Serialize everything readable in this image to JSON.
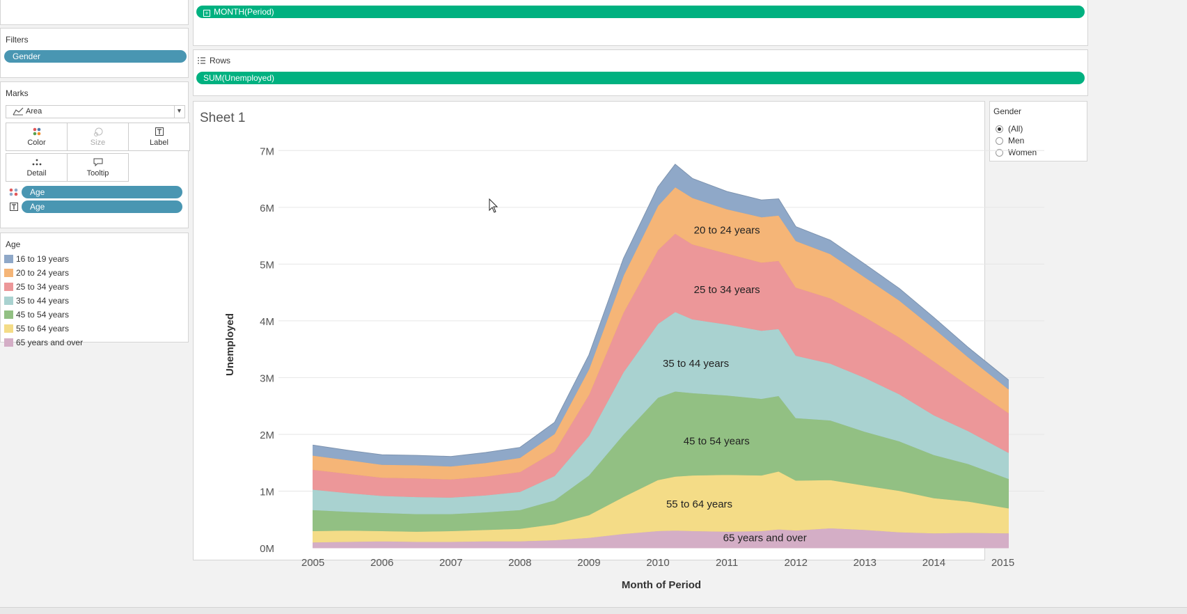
{
  "shelves": {
    "columns_pill": "MONTH(Period)",
    "rows_label": "Rows",
    "rows_pill": "SUM(Unemployed)"
  },
  "filters": {
    "title": "Filters",
    "pill": "Gender"
  },
  "marks": {
    "title": "Marks",
    "type": "Area",
    "buttons": {
      "color": "Color",
      "size": "Size",
      "label": "Label",
      "detail": "Detail",
      "tooltip": "Tooltip"
    },
    "fields": [
      {
        "encoding": "color",
        "label": "Age"
      },
      {
        "encoding": "label",
        "label": "Age"
      }
    ]
  },
  "legend": {
    "title": "Age",
    "items": [
      {
        "label": "16 to 19 years",
        "color": "#8fa8c8"
      },
      {
        "label": "20 to 24 years",
        "color": "#f5b577"
      },
      {
        "label": "25 to 34 years",
        "color": "#ec9799"
      },
      {
        "label": "35 to 44 years",
        "color": "#a9d2d0"
      },
      {
        "label": "45 to 54 years",
        "color": "#92c083"
      },
      {
        "label": "55 to 64 years",
        "color": "#f4dc87"
      },
      {
        "label": "65 years and over",
        "color": "#d4aec6"
      }
    ]
  },
  "gender_filter": {
    "title": "Gender",
    "options": [
      {
        "label": "(All)",
        "selected": true
      },
      {
        "label": "Men",
        "selected": false
      },
      {
        "label": "Women",
        "selected": false
      }
    ]
  },
  "sheet": {
    "title": "Sheet 1"
  },
  "chart_data": {
    "type": "area",
    "stacked": true,
    "x": [
      2005,
      2005.5,
      2006,
      2006.5,
      2007,
      2007.5,
      2008,
      2008.5,
      2009,
      2009.5,
      2010,
      2010.25,
      2010.5,
      2011,
      2011.5,
      2011.75,
      2012,
      2012.5,
      2013,
      2013.5,
      2014,
      2014.5,
      2015.08
    ],
    "xticks": [
      "2005",
      "2006",
      "2007",
      "2008",
      "2009",
      "2010",
      "2011",
      "2012",
      "2013",
      "2014",
      "2015"
    ],
    "xlabel": "Month of Period",
    "ylabel": "Unemployed",
    "yticks": [
      "0M",
      "1M",
      "2M",
      "3M",
      "4M",
      "5M",
      "6M",
      "7M"
    ],
    "ylim": [
      0,
      7200000
    ],
    "grid": true,
    "series": [
      {
        "name": "65 years and over",
        "color": "#d4aec6",
        "values": [
          100000,
          110000,
          120000,
          110000,
          110000,
          120000,
          120000,
          140000,
          180000,
          250000,
          300000,
          310000,
          300000,
          290000,
          300000,
          330000,
          310000,
          350000,
          320000,
          280000,
          260000,
          270000,
          260000
        ]
      },
      {
        "name": "55 to 64 years",
        "color": "#f4dc87",
        "values": [
          200000,
          200000,
          180000,
          180000,
          190000,
          200000,
          220000,
          280000,
          400000,
          650000,
          900000,
          950000,
          980000,
          1000000,
          980000,
          1020000,
          880000,
          850000,
          780000,
          730000,
          620000,
          550000,
          440000
        ]
      },
      {
        "name": "45 to 54 years",
        "color": "#92c083",
        "values": [
          370000,
          330000,
          320000,
          310000,
          300000,
          310000,
          330000,
          420000,
          700000,
          1100000,
          1450000,
          1500000,
          1450000,
          1400000,
          1350000,
          1330000,
          1100000,
          1050000,
          950000,
          870000,
          760000,
          660000,
          520000
        ]
      },
      {
        "name": "35 to 44 years",
        "color": "#a9d2d0",
        "values": [
          360000,
          330000,
          300000,
          300000,
          290000,
          300000,
          320000,
          430000,
          700000,
          1100000,
          1300000,
          1400000,
          1300000,
          1250000,
          1200000,
          1180000,
          1100000,
          1000000,
          950000,
          830000,
          700000,
          580000,
          460000
        ]
      },
      {
        "name": "25 to 34 years",
        "color": "#ec9799",
        "values": [
          350000,
          340000,
          320000,
          330000,
          320000,
          330000,
          350000,
          430000,
          720000,
          1050000,
          1300000,
          1380000,
          1320000,
          1250000,
          1200000,
          1200000,
          1200000,
          1150000,
          1070000,
          1000000,
          950000,
          800000,
          700000
        ]
      },
      {
        "name": "20 to 24 years",
        "color": "#f5b577",
        "values": [
          250000,
          240000,
          230000,
          230000,
          230000,
          240000,
          250000,
          310000,
          450000,
          650000,
          780000,
          820000,
          820000,
          780000,
          800000,
          800000,
          820000,
          780000,
          700000,
          650000,
          580000,
          500000,
          420000
        ]
      },
      {
        "name": "16 to 19 years",
        "color": "#8fa8c8",
        "values": [
          180000,
          170000,
          170000,
          170000,
          170000,
          180000,
          180000,
          200000,
          250000,
          300000,
          330000,
          400000,
          340000,
          310000,
          300000,
          290000,
          250000,
          240000,
          230000,
          210000,
          190000,
          170000,
          160000
        ]
      }
    ],
    "annotations": [
      {
        "series": "20 to 24 years",
        "text": "20 to 24 years",
        "x": 2011,
        "y": 5600000
      },
      {
        "series": "25 to 34 years",
        "text": "25 to 34 years",
        "x": 2011,
        "y": 4550000
      },
      {
        "series": "35 to 44 years",
        "text": "35 to 44 years",
        "x": 2010.55,
        "y": 3250000
      },
      {
        "series": "45 to 54 years",
        "text": "45 to 54 years",
        "x": 2010.85,
        "y": 1880000
      },
      {
        "series": "55 to 64 years",
        "text": "55 to 64 years",
        "x": 2010.6,
        "y": 770000
      },
      {
        "series": "65 years and over",
        "text": "65 years and over",
        "x": 2011.55,
        "y": 180000
      }
    ]
  }
}
